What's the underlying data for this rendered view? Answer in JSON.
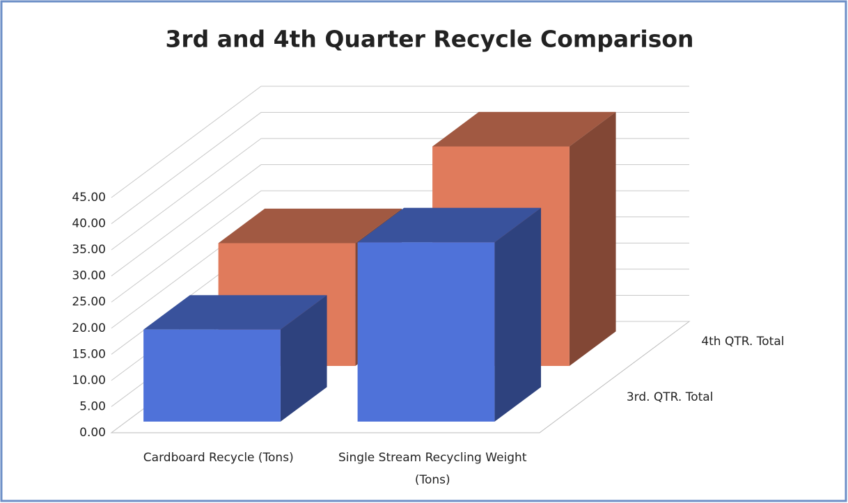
{
  "chart_data": {
    "type": "bar3d",
    "title": "3rd and 4th Quarter Recycle Comparison",
    "categories": [
      "Cardboard Recycle (Tons)",
      "Single Stream Recycling Weight (Tons)"
    ],
    "series": [
      {
        "name": "3rd. QTR. Total",
        "color": "#4f72d9",
        "values": [
          17.6,
          34.3
        ]
      },
      {
        "name": "4th QTR. Total",
        "color": "#e07b5c",
        "values": [
          23.5,
          42
        ]
      }
    ],
    "ylim": [
      0,
      45
    ],
    "yticks": [
      {
        "value": 0,
        "label": "0.00"
      },
      {
        "value": 5,
        "label": "5.00"
      },
      {
        "value": 10,
        "label": "10.00"
      },
      {
        "value": 15,
        "label": "15.00"
      },
      {
        "value": 20,
        "label": "20.00"
      },
      {
        "value": 25,
        "label": "25.00"
      },
      {
        "value": 30,
        "label": "30.00"
      },
      {
        "value": 35,
        "label": "35.00"
      },
      {
        "value": 40,
        "label": "40.00"
      },
      {
        "value": 45,
        "label": "45.00"
      }
    ],
    "grid": true
  }
}
